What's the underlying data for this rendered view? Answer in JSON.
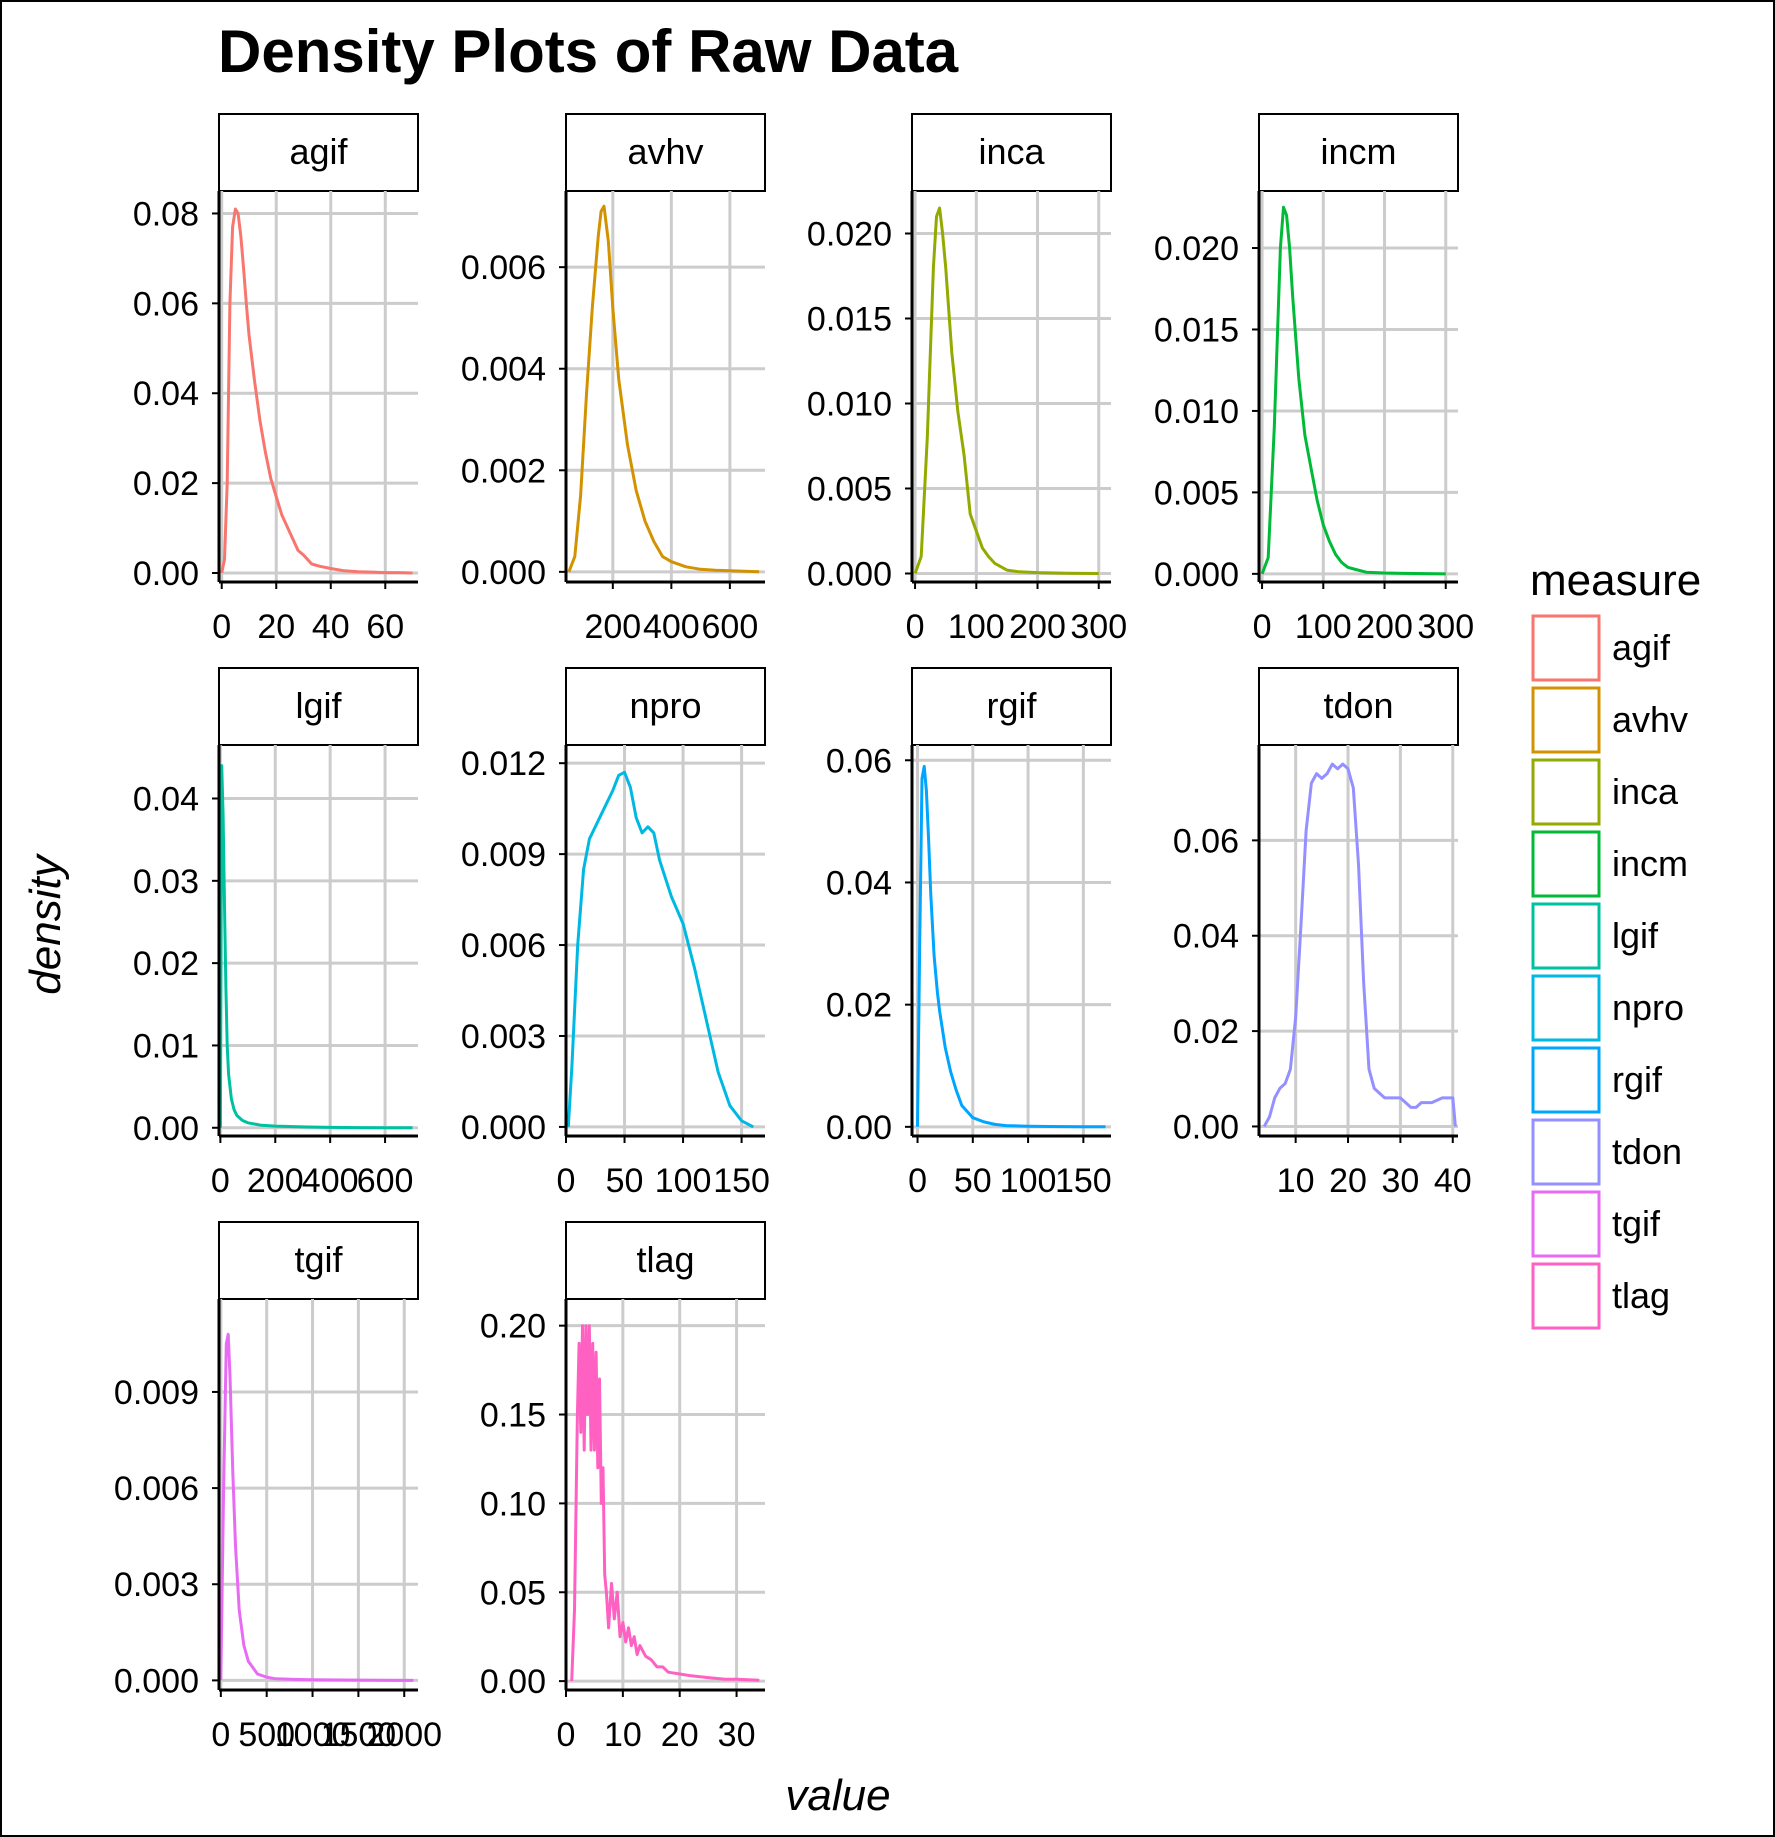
{
  "chart_data": {
    "type": "line",
    "title": "Density Plots of Raw Data",
    "xlabel": "value",
    "ylabel": "density",
    "grid": true,
    "legend": {
      "title": "measure",
      "placement": "right",
      "items": [
        {
          "label": "agif",
          "color": "#F8766D"
        },
        {
          "label": "avhv",
          "color": "#D39200"
        },
        {
          "label": "inca",
          "color": "#93AA00"
        },
        {
          "label": "incm",
          "color": "#00BA38"
        },
        {
          "label": "lgif",
          "color": "#00C19F"
        },
        {
          "label": "npro",
          "color": "#00B9E3"
        },
        {
          "label": "rgif",
          "color": "#00A5FF"
        },
        {
          "label": "tdon",
          "color": "#9590FF"
        },
        {
          "label": "tgif",
          "color": "#E76BF3"
        },
        {
          "label": "tlag",
          "color": "#FF61C3"
        }
      ]
    },
    "panels": [
      {
        "name": "agif",
        "color": "#F8766D",
        "xlim": [
          -1,
          72
        ],
        "ylim": [
          -0.002,
          0.085
        ],
        "xticks": [
          0,
          20,
          40,
          60
        ],
        "xtick_labels": [
          "0",
          "20",
          "40",
          "60"
        ],
        "yticks": [
          0,
          0.02,
          0.04,
          0.06,
          0.08
        ],
        "ytick_labels": [
          "0.00",
          "0.02",
          "0.04",
          "0.06",
          "0.08"
        ],
        "x": [
          0,
          1,
          2,
          3,
          4,
          5,
          6,
          7,
          8,
          9,
          10,
          12,
          14,
          16,
          18,
          20,
          22,
          25,
          28,
          30,
          33,
          36,
          40,
          45,
          50,
          55,
          60,
          65,
          70
        ],
        "y": [
          0.0,
          0.003,
          0.02,
          0.06,
          0.077,
          0.081,
          0.08,
          0.075,
          0.068,
          0.06,
          0.053,
          0.043,
          0.034,
          0.027,
          0.021,
          0.017,
          0.013,
          0.009,
          0.005,
          0.004,
          0.002,
          0.0015,
          0.001,
          0.0005,
          0.0003,
          0.0002,
          0.0001,
          0.0001,
          0.0
        ]
      },
      {
        "name": "avhv",
        "color": "#D39200",
        "xlim": [
          40,
          720
        ],
        "ylim": [
          -0.0002,
          0.0075
        ],
        "xticks": [
          200,
          400,
          600
        ],
        "xtick_labels": [
          "200",
          "400",
          "600"
        ],
        "yticks": [
          0,
          0.002,
          0.004,
          0.006
        ],
        "ytick_labels": [
          "0.000",
          "0.002",
          "0.004",
          "0.006"
        ],
        "x": [
          50,
          70,
          90,
          110,
          130,
          150,
          160,
          170,
          185,
          200,
          220,
          250,
          280,
          310,
          340,
          370,
          400,
          450,
          500,
          550,
          600,
          650,
          700
        ],
        "y": [
          0.0,
          0.0003,
          0.0015,
          0.0035,
          0.0052,
          0.0066,
          0.0071,
          0.0072,
          0.0065,
          0.0052,
          0.0038,
          0.0025,
          0.0016,
          0.001,
          0.0006,
          0.0003,
          0.0002,
          0.0001,
          5e-05,
          3e-05,
          2e-05,
          1e-05,
          0.0
        ]
      },
      {
        "name": "inca",
        "color": "#93AA00",
        "xlim": [
          -5,
          320
        ],
        "ylim": [
          -0.0005,
          0.0225
        ],
        "xticks": [
          0,
          100,
          200,
          300
        ],
        "xtick_labels": [
          "0",
          "100",
          "200",
          "300"
        ],
        "yticks": [
          0,
          0.005,
          0.01,
          0.015,
          0.02
        ],
        "ytick_labels": [
          "0.000",
          "0.005",
          "0.010",
          "0.015",
          "0.020"
        ],
        "x": [
          0,
          10,
          20,
          30,
          35,
          40,
          45,
          50,
          60,
          70,
          80,
          90,
          100,
          110,
          120,
          130,
          140,
          150,
          170,
          200,
          250,
          300
        ],
        "y": [
          0.0,
          0.001,
          0.008,
          0.018,
          0.021,
          0.0215,
          0.02,
          0.018,
          0.013,
          0.0095,
          0.007,
          0.0035,
          0.0025,
          0.0015,
          0.001,
          0.0006,
          0.0004,
          0.0002,
          0.0001,
          5e-05,
          2e-05,
          0.0
        ]
      },
      {
        "name": "incm",
        "color": "#00BA38",
        "xlim": [
          -5,
          320
        ],
        "ylim": [
          -0.0005,
          0.0235
        ],
        "xticks": [
          0,
          100,
          200,
          300
        ],
        "xtick_labels": [
          "0",
          "100",
          "200",
          "300"
        ],
        "yticks": [
          0,
          0.005,
          0.01,
          0.015,
          0.02
        ],
        "ytick_labels": [
          "0.000",
          "0.005",
          "0.010",
          "0.015",
          "0.020"
        ],
        "x": [
          0,
          10,
          20,
          30,
          35,
          40,
          45,
          50,
          60,
          70,
          80,
          90,
          100,
          110,
          120,
          130,
          140,
          150,
          170,
          200,
          250,
          300
        ],
        "y": [
          0.0,
          0.001,
          0.009,
          0.02,
          0.0225,
          0.022,
          0.02,
          0.017,
          0.012,
          0.0085,
          0.0065,
          0.0045,
          0.003,
          0.002,
          0.0012,
          0.0007,
          0.0004,
          0.0003,
          0.0001,
          5e-05,
          2e-05,
          0.0
        ]
      },
      {
        "name": "lgif",
        "color": "#00C19F",
        "xlim": [
          -5,
          720
        ],
        "ylim": [
          -0.001,
          0.0465
        ],
        "xticks": [
          0,
          200,
          400,
          600
        ],
        "xtick_labels": [
          "0",
          "200",
          "400",
          "600"
        ],
        "yticks": [
          0,
          0.01,
          0.02,
          0.03,
          0.04
        ],
        "ytick_labels": [
          "0.00",
          "0.01",
          "0.02",
          "0.03",
          "0.04"
        ],
        "x": [
          0,
          5,
          10,
          15,
          20,
          25,
          30,
          40,
          50,
          60,
          80,
          100,
          150,
          200,
          300,
          400,
          500,
          600,
          700
        ],
        "y": [
          0.0,
          0.044,
          0.038,
          0.027,
          0.017,
          0.01,
          0.0065,
          0.0035,
          0.0022,
          0.0015,
          0.0009,
          0.0006,
          0.0003,
          0.0002,
          0.0001,
          5e-05,
          2e-05,
          1e-05,
          0.0
        ]
      },
      {
        "name": "npro",
        "color": "#00B9E3",
        "xlim": [
          0,
          170
        ],
        "ylim": [
          -0.0003,
          0.0126
        ],
        "xticks": [
          0,
          50,
          100,
          150
        ],
        "xtick_labels": [
          "0",
          "50",
          "100",
          "150"
        ],
        "yticks": [
          0,
          0.003,
          0.006,
          0.009,
          0.012
        ],
        "ytick_labels": [
          "0.000",
          "0.003",
          "0.006",
          "0.009",
          "0.012"
        ],
        "x": [
          2,
          5,
          10,
          15,
          20,
          30,
          40,
          45,
          50,
          55,
          60,
          65,
          70,
          75,
          80,
          90,
          100,
          110,
          120,
          130,
          140,
          150,
          160
        ],
        "y": [
          0.0,
          0.002,
          0.006,
          0.0085,
          0.0095,
          0.0103,
          0.0111,
          0.0116,
          0.0117,
          0.0112,
          0.0102,
          0.0097,
          0.0099,
          0.0097,
          0.0088,
          0.0076,
          0.0067,
          0.0052,
          0.0035,
          0.0018,
          0.0007,
          0.0002,
          0.0
        ]
      },
      {
        "name": "rgif",
        "color": "#00A5FF",
        "xlim": [
          -5,
          175
        ],
        "ylim": [
          -0.0015,
          0.0625
        ],
        "xticks": [
          0,
          50,
          100,
          150
        ],
        "xtick_labels": [
          "0",
          "50",
          "100",
          "150"
        ],
        "yticks": [
          0,
          0.02,
          0.04,
          0.06
        ],
        "ytick_labels": [
          "0.00",
          "0.02",
          "0.04",
          "0.06"
        ],
        "x": [
          0,
          2,
          4,
          6,
          8,
          10,
          12,
          15,
          18,
          20,
          25,
          30,
          35,
          40,
          45,
          50,
          60,
          70,
          80,
          100,
          120,
          150,
          170
        ],
        "y": [
          0.0,
          0.03,
          0.057,
          0.059,
          0.055,
          0.047,
          0.038,
          0.028,
          0.022,
          0.019,
          0.013,
          0.009,
          0.006,
          0.0035,
          0.0025,
          0.0015,
          0.0008,
          0.0004,
          0.0002,
          0.0001,
          5e-05,
          2e-05,
          0.0
        ]
      },
      {
        "name": "tdon",
        "color": "#9590FF",
        "xlim": [
          3,
          41
        ],
        "ylim": [
          -0.002,
          0.08
        ],
        "xticks": [
          10,
          20,
          30,
          40
        ],
        "xtick_labels": [
          "10",
          "20",
          "30",
          "40"
        ],
        "yticks": [
          0,
          0.02,
          0.04,
          0.06
        ],
        "ytick_labels": [
          "0.00",
          "0.02",
          "0.04",
          "0.06"
        ],
        "x": [
          4,
          5,
          6,
          7,
          8,
          9,
          10,
          11,
          12,
          13,
          14,
          15,
          16,
          17,
          18,
          19,
          20,
          21,
          22,
          23,
          24,
          25,
          26,
          27,
          28,
          30,
          32,
          33,
          34,
          36,
          38,
          40,
          40.5
        ],
        "y": [
          0.0,
          0.002,
          0.006,
          0.008,
          0.009,
          0.012,
          0.023,
          0.042,
          0.062,
          0.072,
          0.074,
          0.073,
          0.074,
          0.076,
          0.075,
          0.076,
          0.075,
          0.071,
          0.055,
          0.03,
          0.012,
          0.008,
          0.007,
          0.006,
          0.006,
          0.006,
          0.004,
          0.004,
          0.005,
          0.005,
          0.006,
          0.006,
          0.0
        ]
      },
      {
        "name": "tgif",
        "color": "#E76BF3",
        "xlim": [
          -20,
          2150
        ],
        "ylim": [
          -0.0003,
          0.0119
        ],
        "xticks": [
          0,
          500,
          1000,
          1500,
          2000
        ],
        "xtick_labels": [
          "0",
          "500",
          "1000",
          "1500",
          "2000"
        ],
        "yticks": [
          0,
          0.003,
          0.006,
          0.009
        ],
        "ytick_labels": [
          "0.000",
          "0.003",
          "0.006",
          "0.009"
        ],
        "x": [
          0,
          30,
          60,
          80,
          100,
          130,
          160,
          200,
          250,
          300,
          350,
          400,
          500,
          600,
          800,
          1000,
          1500,
          2000,
          2100
        ],
        "y": [
          0.0,
          0.006,
          0.0105,
          0.0108,
          0.0095,
          0.0065,
          0.0042,
          0.0022,
          0.0011,
          0.0006,
          0.0004,
          0.0002,
          0.0001,
          5e-05,
          3e-05,
          2e-05,
          1e-05,
          0.0,
          0.0
        ]
      },
      {
        "name": "tlag",
        "color": "#FF61C3",
        "xlim": [
          0,
          35
        ],
        "ylim": [
          -0.005,
          0.215
        ],
        "xticks": [
          0,
          10,
          20,
          30
        ],
        "xtick_labels": [
          "0",
          "10",
          "20",
          "30"
        ],
        "yticks": [
          0,
          0.05,
          0.1,
          0.15,
          0.2
        ],
        "ytick_labels": [
          "0.00",
          "0.05",
          "0.10",
          "0.15",
          "0.20"
        ],
        "x": [
          1,
          1.5,
          2,
          2.3,
          2.6,
          2.9,
          3.2,
          3.5,
          3.8,
          4.1,
          4.4,
          4.7,
          5.0,
          5.3,
          5.6,
          5.9,
          6.2,
          6.5,
          6.8,
          7.1,
          7.5,
          8,
          8.5,
          9,
          9.5,
          10,
          10.5,
          11,
          11.5,
          12,
          12.5,
          13,
          14,
          15,
          16,
          17,
          18,
          20,
          22,
          25,
          28,
          30,
          34
        ],
        "y": [
          0.0,
          0.04,
          0.15,
          0.19,
          0.14,
          0.2,
          0.13,
          0.2,
          0.15,
          0.2,
          0.13,
          0.19,
          0.13,
          0.185,
          0.12,
          0.17,
          0.1,
          0.12,
          0.06,
          0.05,
          0.03,
          0.055,
          0.035,
          0.05,
          0.025,
          0.033,
          0.022,
          0.03,
          0.02,
          0.025,
          0.015,
          0.02,
          0.014,
          0.012,
          0.008,
          0.008,
          0.005,
          0.004,
          0.003,
          0.002,
          0.001,
          0.001,
          0.0005
        ]
      }
    ]
  }
}
